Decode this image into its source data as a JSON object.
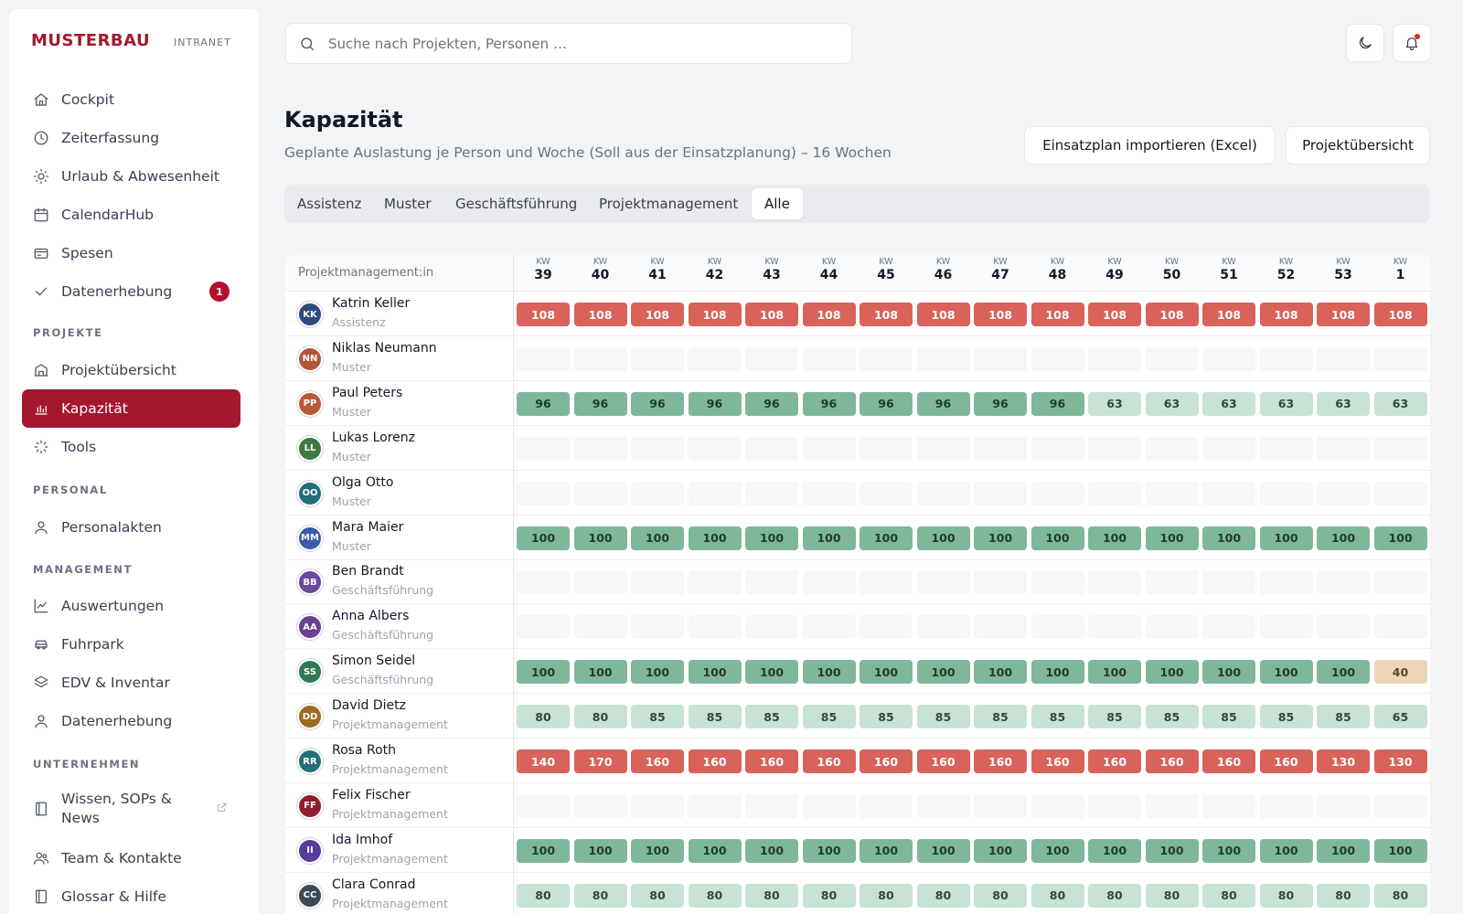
{
  "brand": {
    "name": "MUSTERBAU",
    "sub": "INTRANET"
  },
  "sidebar": {
    "items": [
      {
        "label": "Cockpit",
        "icon": "home-icon"
      },
      {
        "label": "Zeiterfassung",
        "icon": "clock-icon"
      },
      {
        "label": "Urlaub & Abwesenheit",
        "icon": "sun-icon"
      },
      {
        "label": "CalendarHub",
        "icon": "calendar-icon"
      },
      {
        "label": "Spesen",
        "icon": "receipt-icon"
      },
      {
        "label": "Datenerhebung",
        "icon": "check-icon",
        "badge": "1"
      }
    ],
    "sections": {
      "projekte": "PROJEKTE",
      "personal": "PERSONAL",
      "management": "MANAGEMENT",
      "unternehmen": "UNTERNEHMEN"
    },
    "projekte_items": [
      {
        "label": "Projektübersicht",
        "icon": "building-icon"
      },
      {
        "label": "Kapazität",
        "icon": "bar-chart-icon",
        "active": true
      },
      {
        "label": "Tools",
        "icon": "loader-icon"
      }
    ],
    "personal_items": [
      {
        "label": "Personalakten",
        "icon": "user-icon"
      }
    ],
    "management_items": [
      {
        "label": "Auswertungen",
        "icon": "line-chart-icon"
      },
      {
        "label": "Fuhrpark",
        "icon": "car-icon"
      },
      {
        "label": "EDV & Inventar",
        "icon": "layers-icon"
      },
      {
        "label": "Datenerhebung",
        "icon": "user-icon"
      }
    ],
    "unternehmen_items": [
      {
        "label": "Wissen, SOPs &",
        "label2": "News",
        "icon": "book-icon",
        "external": true
      },
      {
        "label": "Team & Kontakte",
        "icon": "users-icon"
      },
      {
        "label": "Glossar & Hilfe",
        "icon": "book-icon"
      }
    ]
  },
  "search": {
    "placeholder": "Suche nach Projekten, Personen …"
  },
  "header": {
    "title": "Kapazität",
    "subtitle": "Geplante Auslastung je Person und Woche (Soll aus der Einsatzplanung) – 16 Wochen",
    "import_button": "Einsatzplan importieren (Excel)",
    "overview_button": "Projektübersicht"
  },
  "tabs": [
    "Assistenz",
    "Muster",
    "Geschäftsführung",
    "Projektmanagement",
    "Alle"
  ],
  "active_tab": "Alle",
  "table": {
    "name_header": "Projektmanagement:in",
    "week_prefix": "KW",
    "weeks": [
      "39",
      "40",
      "41",
      "42",
      "43",
      "44",
      "45",
      "46",
      "47",
      "48",
      "49",
      "50",
      "51",
      "52",
      "53",
      "1"
    ],
    "people": [
      {
        "initials": "KK",
        "name": "Katrin Keller",
        "role": "Assistenz",
        "color": "#2f4a7d",
        "values": [
          108,
          108,
          108,
          108,
          108,
          108,
          108,
          108,
          108,
          108,
          108,
          108,
          108,
          108,
          108,
          108
        ]
      },
      {
        "initials": "NN",
        "name": "Niklas Neumann",
        "role": "Muster",
        "color": "#b0573b",
        "values": []
      },
      {
        "initials": "PP",
        "name": "Paul Peters",
        "role": "Muster",
        "color": "#b65a37",
        "values": [
          96,
          96,
          96,
          96,
          96,
          96,
          96,
          96,
          96,
          96,
          63,
          63,
          63,
          63,
          63,
          63
        ]
      },
      {
        "initials": "LL",
        "name": "Lukas Lorenz",
        "role": "Muster",
        "color": "#3f7a3f",
        "values": []
      },
      {
        "initials": "OO",
        "name": "Olga Otto",
        "role": "Muster",
        "color": "#1f6f7a",
        "values": []
      },
      {
        "initials": "MM",
        "name": "Mara Maier",
        "role": "Muster",
        "color": "#3a5ca8",
        "values": [
          100,
          100,
          100,
          100,
          100,
          100,
          100,
          100,
          100,
          100,
          100,
          100,
          100,
          100,
          100,
          100
        ]
      },
      {
        "initials": "BB",
        "name": "Ben Brandt",
        "role": "Geschäftsführung",
        "color": "#6a4a9a",
        "values": []
      },
      {
        "initials": "AA",
        "name": "Anna Albers",
        "role": "Geschäftsführung",
        "color": "#6d3f8f",
        "values": []
      },
      {
        "initials": "SS",
        "name": "Simon Seidel",
        "role": "Geschäftsführung",
        "color": "#2f7a55",
        "values": [
          100,
          100,
          100,
          100,
          100,
          100,
          100,
          100,
          100,
          100,
          100,
          100,
          100,
          100,
          100,
          40
        ]
      },
      {
        "initials": "DD",
        "name": "David Dietz",
        "role": "Projektmanagement",
        "color": "#9a6a1f",
        "values": [
          80,
          80,
          85,
          85,
          85,
          85,
          85,
          85,
          85,
          85,
          85,
          85,
          85,
          85,
          85,
          65
        ]
      },
      {
        "initials": "RR",
        "name": "Rosa Roth",
        "role": "Projektmanagement",
        "color": "#237075",
        "values": [
          140,
          170,
          160,
          160,
          160,
          160,
          160,
          160,
          160,
          160,
          160,
          160,
          160,
          160,
          130,
          130
        ]
      },
      {
        "initials": "FF",
        "name": "Felix Fischer",
        "role": "Projektmanagement",
        "color": "#8f1f2f",
        "values": []
      },
      {
        "initials": "II",
        "name": "Ida Imhof",
        "role": "Projektmanagement",
        "color": "#5a3a9a",
        "values": [
          100,
          100,
          100,
          100,
          100,
          100,
          100,
          100,
          100,
          100,
          100,
          100,
          100,
          100,
          100,
          100
        ]
      },
      {
        "initials": "CC",
        "name": "Clara Conrad",
        "role": "Projektmanagement",
        "color": "#3a4a5a",
        "values": [
          80,
          80,
          80,
          80,
          80,
          80,
          80,
          80,
          80,
          80,
          80,
          80,
          80,
          80,
          80,
          80
        ]
      }
    ]
  }
}
